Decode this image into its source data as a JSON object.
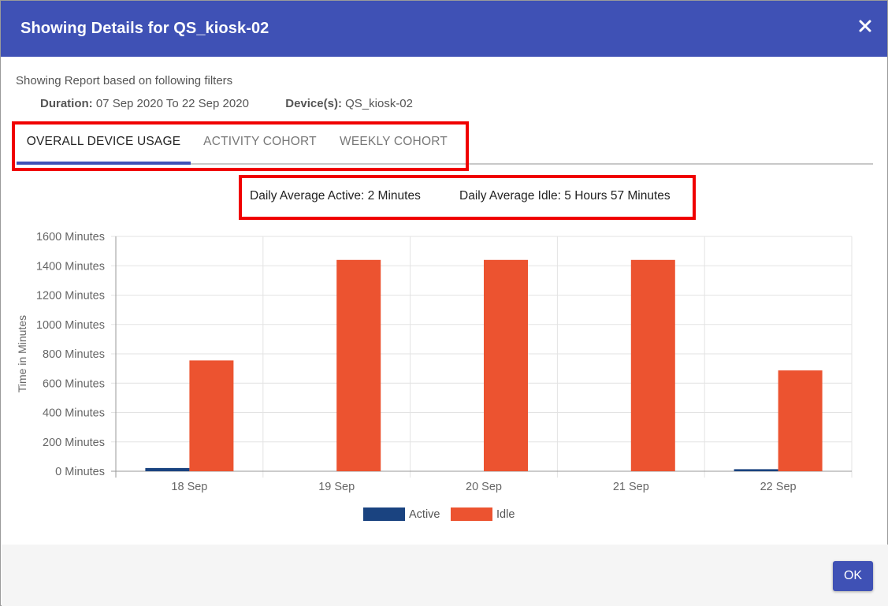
{
  "dialog": {
    "title": "Showing Details for QS_kiosk-02",
    "close_icon": "close-icon"
  },
  "filters": {
    "caption": "Showing Report based on following filters",
    "duration_label": "Duration:",
    "duration_value": "07 Sep 2020 To 22 Sep 2020",
    "device_label": "Device(s):",
    "device_value": "QS_kiosk-02"
  },
  "tabs": [
    {
      "label": "OVERALL DEVICE USAGE",
      "active": true
    },
    {
      "label": "ACTIVITY COHORT",
      "active": false
    },
    {
      "label": "WEEKLY COHORT",
      "active": false
    }
  ],
  "summary": {
    "active": "Daily Average Active: 2 Minutes",
    "idle": "Daily Average Idle: 5 Hours 57 Minutes"
  },
  "colors": {
    "header": "#3f51b5",
    "active": "#1a4380",
    "idle": "#ec5330",
    "highlight": "#f00000"
  },
  "chart_data": {
    "type": "bar",
    "categories": [
      "18 Sep",
      "19 Sep",
      "20 Sep",
      "21 Sep",
      "22 Sep"
    ],
    "series": [
      {
        "name": "Active",
        "values": [
          22,
          0,
          0,
          0,
          14
        ]
      },
      {
        "name": "Idle",
        "values": [
          755,
          1440,
          1440,
          1440,
          687
        ]
      }
    ],
    "ylabel": "Time in Minutes",
    "ylim": [
      0,
      1600
    ],
    "yticks": [
      "0 Minutes",
      "200 Minutes",
      "400 Minutes",
      "600 Minutes",
      "800 Minutes",
      "1000 Minutes",
      "1200 Minutes",
      "1400 Minutes",
      "1600 Minutes"
    ],
    "ytick_values": [
      0,
      200,
      400,
      600,
      800,
      1000,
      1200,
      1400,
      1600
    ],
    "grid": true,
    "legend": "bottom"
  },
  "footer": {
    "ok_label": "OK"
  }
}
